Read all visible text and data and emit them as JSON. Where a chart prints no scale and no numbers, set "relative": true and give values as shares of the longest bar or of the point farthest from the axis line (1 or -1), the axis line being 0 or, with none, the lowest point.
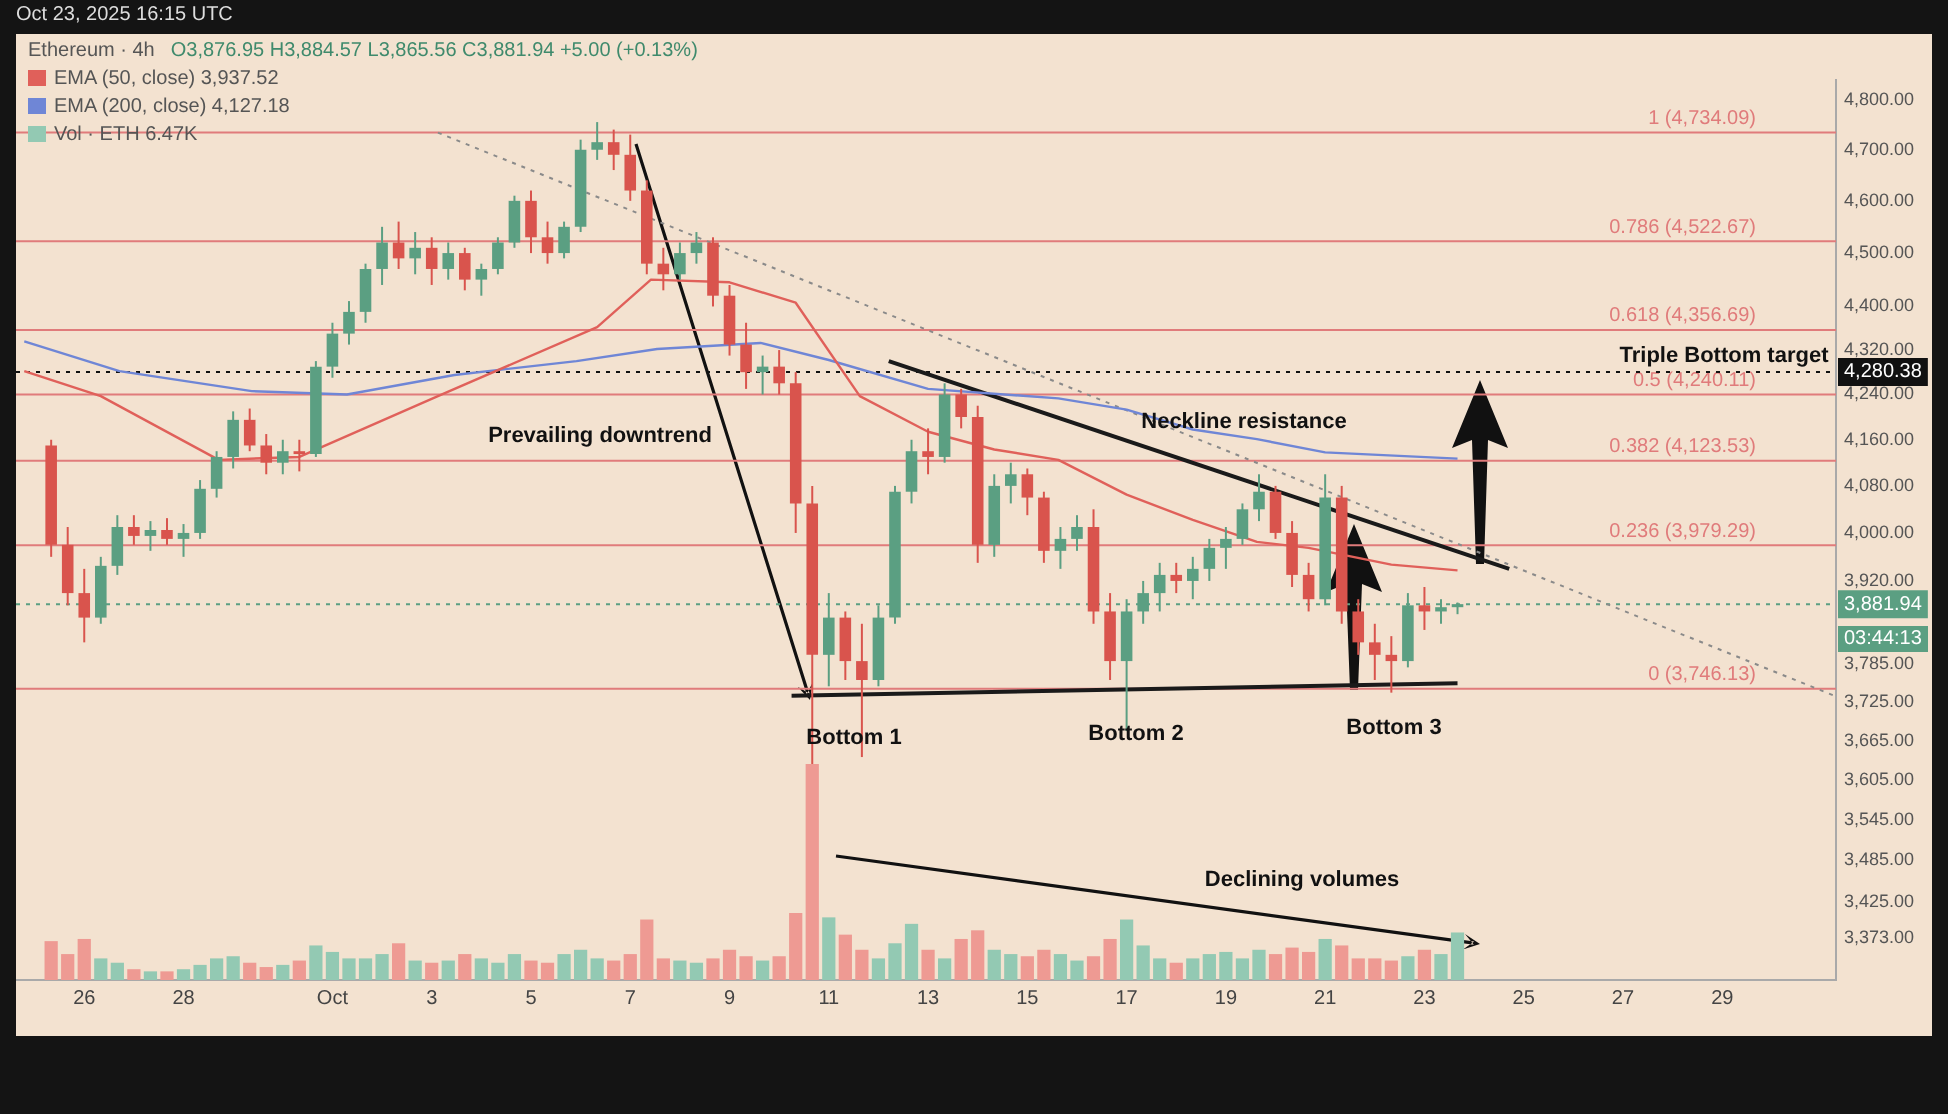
{
  "chart_data": [
    {
      "type": "candlestick",
      "title": "Ethereum · 4h",
      "subtitle": "O3,876.95 H3,884.57 L3,865.56 C3,881.94 +5.00 (+0.13%)",
      "legend": "top left",
      "grid": false,
      "log": true,
      "x": [
        "2025-09-25T08:00",
        "2025-09-25T16:00",
        "2025-09-26T00:00",
        "2025-09-26T08:00",
        "2025-09-26T16:00",
        "2025-09-27T00:00",
        "2025-09-27T08:00",
        "2025-09-27T16:00",
        "2025-09-28T00:00",
        "2025-09-28T08:00",
        "2025-09-28T16:00",
        "2025-09-29T00:00",
        "2025-09-29T08:00",
        "2025-09-29T16:00",
        "2025-09-30T00:00",
        "2025-09-30T08:00",
        "2025-09-30T16:00",
        "2025-10-01T00:00",
        "2025-10-01T08:00",
        "2025-10-01T16:00",
        "2025-10-02T00:00",
        "2025-10-02T08:00",
        "2025-10-02T16:00",
        "2025-10-03T00:00",
        "2025-10-03T08:00",
        "2025-10-03T16:00",
        "2025-10-04T00:00",
        "2025-10-04T08:00",
        "2025-10-04T16:00",
        "2025-10-05T00:00",
        "2025-10-05T08:00",
        "2025-10-05T16:00",
        "2025-10-06T00:00",
        "2025-10-06T08:00",
        "2025-10-06T16:00",
        "2025-10-07T00:00",
        "2025-10-07T08:00",
        "2025-10-07T16:00",
        "2025-10-08T00:00",
        "2025-10-08T08:00",
        "2025-10-08T16:00",
        "2025-10-09T00:00",
        "2025-10-09T08:00",
        "2025-10-09T16:00",
        "2025-10-10T00:00",
        "2025-10-10T08:00",
        "2025-10-10T16:00",
        "2025-10-11T00:00",
        "2025-10-11T08:00",
        "2025-10-11T16:00",
        "2025-10-12T00:00",
        "2025-10-12T08:00",
        "2025-10-12T16:00",
        "2025-10-13T00:00",
        "2025-10-13T08:00",
        "2025-10-13T16:00",
        "2025-10-14T00:00",
        "2025-10-14T08:00",
        "2025-10-14T16:00",
        "2025-10-15T00:00",
        "2025-10-15T08:00",
        "2025-10-15T16:00",
        "2025-10-16T00:00",
        "2025-10-16T08:00",
        "2025-10-16T16:00",
        "2025-10-17T00:00",
        "2025-10-17T08:00",
        "2025-10-17T16:00",
        "2025-10-18T00:00",
        "2025-10-18T08:00",
        "2025-10-18T16:00",
        "2025-10-19T00:00",
        "2025-10-19T08:00",
        "2025-10-19T16:00",
        "2025-10-20T00:00",
        "2025-10-20T08:00",
        "2025-10-20T16:00",
        "2025-10-21T00:00",
        "2025-10-21T08:00",
        "2025-10-21T16:00",
        "2025-10-22T00:00",
        "2025-10-22T08:00",
        "2025-10-22T16:00",
        "2025-10-23T00:00",
        "2025-10-23T08:00",
        "2025-10-23T16:00"
      ],
      "ohlc": [
        [
          4150,
          4160,
          3960,
          3980
        ],
        [
          3980,
          4010,
          3880,
          3900
        ],
        [
          3900,
          3940,
          3820,
          3860
        ],
        [
          3860,
          3960,
          3850,
          3945
        ],
        [
          3945,
          4030,
          3930,
          4010
        ],
        [
          4010,
          4030,
          3980,
          3995
        ],
        [
          3995,
          4020,
          3970,
          4005
        ],
        [
          4005,
          4025,
          3980,
          3990
        ],
        [
          3990,
          4015,
          3960,
          4000
        ],
        [
          4000,
          4090,
          3990,
          4075
        ],
        [
          4075,
          4140,
          4060,
          4130
        ],
        [
          4130,
          4210,
          4110,
          4195
        ],
        [
          4195,
          4215,
          4140,
          4150
        ],
        [
          4150,
          4170,
          4100,
          4120
        ],
        [
          4120,
          4160,
          4100,
          4140
        ],
        [
          4140,
          4160,
          4105,
          4135
        ],
        [
          4135,
          4300,
          4130,
          4290
        ],
        [
          4290,
          4370,
          4270,
          4350
        ],
        [
          4350,
          4410,
          4330,
          4390
        ],
        [
          4390,
          4480,
          4370,
          4470
        ],
        [
          4470,
          4550,
          4440,
          4520
        ],
        [
          4520,
          4560,
          4470,
          4490
        ],
        [
          4490,
          4540,
          4460,
          4510
        ],
        [
          4510,
          4530,
          4440,
          4470
        ],
        [
          4470,
          4520,
          4450,
          4500
        ],
        [
          4500,
          4510,
          4430,
          4450
        ],
        [
          4450,
          4480,
          4420,
          4470
        ],
        [
          4470,
          4530,
          4460,
          4520
        ],
        [
          4520,
          4610,
          4510,
          4600
        ],
        [
          4600,
          4620,
          4500,
          4530
        ],
        [
          4530,
          4560,
          4480,
          4500
        ],
        [
          4500,
          4560,
          4490,
          4550
        ],
        [
          4550,
          4720,
          4540,
          4700
        ],
        [
          4700,
          4755,
          4680,
          4715
        ],
        [
          4715,
          4740,
          4660,
          4690
        ],
        [
          4690,
          4730,
          4600,
          4620
        ],
        [
          4620,
          4640,
          4460,
          4480
        ],
        [
          4480,
          4510,
          4430,
          4460
        ],
        [
          4460,
          4520,
          4450,
          4500
        ],
        [
          4500,
          4540,
          4480,
          4520
        ],
        [
          4520,
          4530,
          4400,
          4420
        ],
        [
          4420,
          4440,
          4310,
          4330
        ],
        [
          4330,
          4370,
          4250,
          4280
        ],
        [
          4280,
          4310,
          4240,
          4290
        ],
        [
          4290,
          4320,
          4240,
          4260
        ],
        [
          4260,
          4280,
          4000,
          4050
        ],
        [
          4050,
          4080,
          3600,
          3800
        ],
        [
          3800,
          3900,
          3750,
          3860
        ],
        [
          3860,
          3870,
          3760,
          3790
        ],
        [
          3790,
          3850,
          3640,
          3760
        ],
        [
          3760,
          3880,
          3750,
          3860
        ],
        [
          3860,
          4080,
          3850,
          4070
        ],
        [
          4070,
          4160,
          4050,
          4140
        ],
        [
          4140,
          4180,
          4100,
          4130
        ],
        [
          4130,
          4260,
          4120,
          4240
        ],
        [
          4240,
          4250,
          4180,
          4200
        ],
        [
          4200,
          4220,
          3950,
          3980
        ],
        [
          3980,
          4100,
          3960,
          4080
        ],
        [
          4080,
          4120,
          4050,
          4100
        ],
        [
          4100,
          4110,
          4030,
          4060
        ],
        [
          4060,
          4070,
          3950,
          3970
        ],
        [
          3970,
          4010,
          3940,
          3990
        ],
        [
          3990,
          4030,
          3970,
          4010
        ],
        [
          4010,
          4040,
          3850,
          3870
        ],
        [
          3870,
          3900,
          3760,
          3790
        ],
        [
          3790,
          3890,
          3680,
          3870
        ],
        [
          3870,
          3920,
          3850,
          3900
        ],
        [
          3900,
          3950,
          3870,
          3930
        ],
        [
          3930,
          3950,
          3900,
          3920
        ],
        [
          3920,
          3960,
          3890,
          3940
        ],
        [
          3940,
          3990,
          3920,
          3975
        ],
        [
          3975,
          4010,
          3940,
          3990
        ],
        [
          3990,
          4050,
          3980,
          4040
        ],
        [
          4040,
          4100,
          4020,
          4070
        ],
        [
          4070,
          4080,
          3990,
          4000
        ],
        [
          4000,
          4020,
          3910,
          3930
        ],
        [
          3930,
          3950,
          3870,
          3890
        ],
        [
          3890,
          4100,
          3880,
          4060
        ],
        [
          4060,
          4080,
          3850,
          3870
        ],
        [
          3870,
          3890,
          3800,
          3820
        ],
        [
          3820,
          3850,
          3760,
          3800
        ],
        [
          3800,
          3830,
          3740,
          3790
        ],
        [
          3790,
          3900,
          3780,
          3880
        ],
        [
          3880,
          3910,
          3840,
          3870
        ],
        [
          3870,
          3890,
          3850,
          3876.95
        ],
        [
          3876.95,
          3884.57,
          3865.56,
          3881.94
        ]
      ],
      "colors": [
        "#d9544d",
        "#d9544d",
        "#d9544d",
        "#5b9f82",
        "#5b9f82",
        "#d9544d",
        "#5b9f82",
        "#d9544d",
        "#5b9f82",
        "#5b9f82",
        "#5b9f82",
        "#5b9f82",
        "#d9544d",
        "#d9544d",
        "#5b9f82",
        "#d9544d",
        "#5b9f82",
        "#5b9f82",
        "#5b9f82",
        "#5b9f82",
        "#5b9f82",
        "#d9544d",
        "#5b9f82",
        "#d9544d",
        "#5b9f82",
        "#d9544d",
        "#5b9f82",
        "#5b9f82",
        "#5b9f82",
        "#d9544d",
        "#d9544d",
        "#5b9f82",
        "#5b9f82",
        "#5b9f82",
        "#d9544d",
        "#d9544d",
        "#d9544d",
        "#d9544d",
        "#5b9f82",
        "#5b9f82",
        "#d9544d",
        "#d9544d",
        "#d9544d",
        "#5b9f82",
        "#d9544d",
        "#d9544d",
        "#d9544d",
        "#5b9f82",
        "#d9544d",
        "#d9544d",
        "#5b9f82",
        "#5b9f82",
        "#5b9f82",
        "#d9544d",
        "#5b9f82",
        "#d9544d",
        "#d9544d",
        "#5b9f82",
        "#5b9f82",
        "#d9544d",
        "#d9544d",
        "#5b9f82",
        "#5b9f82",
        "#d9544d",
        "#d9544d",
        "#5b9f82",
        "#5b9f82",
        "#5b9f82",
        "#d9544d",
        "#5b9f82",
        "#5b9f82",
        "#5b9f82",
        "#5b9f82",
        "#5b9f82",
        "#d9544d",
        "#d9544d",
        "#d9544d",
        "#5b9f82",
        "#d9544d",
        "#d9544d",
        "#d9544d",
        "#d9544d",
        "#5b9f82",
        "#d9544d",
        "#5b9f82",
        "#5b9f82"
      ],
      "series": [
        {
          "name": "EMA (50, close) 3,937.52",
          "type": "line",
          "color": "#e0605a",
          "x": [
            "2025-09-24T19:00",
            "2025-09-26T08:00",
            "2025-09-28T17:00",
            "2025-09-30T08:00",
            "2025-10-03T03:00",
            "2025-10-06T08:00",
            "2025-10-07T10:00",
            "2025-10-09T00:00",
            "2025-10-10T08:00",
            "2025-10-11T15:00",
            "2025-10-13T00:00",
            "2025-10-14T08:00",
            "2025-10-15T15:00",
            "2025-10-17T00:00",
            "2025-10-18T08:00",
            "2025-10-19T15:00",
            "2025-10-20T16:00",
            "2025-10-22T08:00",
            "2025-10-23T16:00"
          ],
          "values": [
            4282,
            4237,
            4125,
            4130,
            4237,
            4362,
            4450,
            4445,
            4407,
            4237,
            4174,
            4143,
            4125,
            4065,
            4022,
            3985,
            3975,
            3947,
            3937.52
          ]
        },
        {
          "name": "EMA (200, close) 4,127.18",
          "type": "line",
          "color": "#6f86d6",
          "x": [
            "2025-09-24T19:00",
            "2025-09-26T17:00",
            "2025-09-29T09:00",
            "2025-10-01T07:00",
            "2025-10-03T11:00",
            "2025-10-05T22:00",
            "2025-10-07T13:00",
            "2025-10-09T15:00",
            "2025-10-11T00:00",
            "2025-10-13T00:00",
            "2025-10-15T15:00",
            "2025-10-17T00:00",
            "2025-10-18T08:00",
            "2025-10-19T15:00",
            "2025-10-21T00:00",
            "2025-10-23T16:00"
          ],
          "values": [
            4336,
            4282,
            4246,
            4240,
            4275,
            4300,
            4322,
            4333,
            4302,
            4250,
            4233,
            4213,
            4178,
            4161,
            4138,
            4127.18
          ]
        },
        {
          "type": "line",
          "color": "#1a1a1a",
          "x": [
            "2025-10-12T05:00",
            "2025-10-24T17:00"
          ],
          "values": [
            4300,
            3940
          ]
        },
        {
          "type": "line",
          "color": "#1a1a1a",
          "x": [
            "2025-10-10T06:00",
            "2025-10-23T16:00"
          ],
          "values": [
            3735,
            3755
          ]
        },
        {
          "type": "line",
          "color": "#8a8a8a",
          "line_style": "dotted",
          "x": [
            "2025-10-03T03:00",
            "2025-10-31T07:00"
          ],
          "values": [
            4734,
            3734
          ]
        }
      ],
      "xlim": [
        "2025-09-24T15:00",
        "2025-10-31T07:00"
      ],
      "xticks": [
        {
          "value": "2025-09-26",
          "label": "26"
        },
        {
          "value": "2025-09-28",
          "label": "28"
        },
        {
          "value": "2025-10-01",
          "label": "Oct"
        },
        {
          "value": "2025-10-03",
          "label": "3"
        },
        {
          "value": "2025-10-05",
          "label": "5"
        },
        {
          "value": "2025-10-07",
          "label": "7"
        },
        {
          "value": "2025-10-09",
          "label": "9"
        },
        {
          "value": "2025-10-11",
          "label": "11"
        },
        {
          "value": "2025-10-13",
          "label": "13"
        },
        {
          "value": "2025-10-15",
          "label": "15"
        },
        {
          "value": "2025-10-17",
          "label": "17"
        },
        {
          "value": "2025-10-19",
          "label": "19"
        },
        {
          "value": "2025-10-21",
          "label": "21"
        },
        {
          "value": "2025-10-23",
          "label": "23"
        },
        {
          "value": "2025-10-25",
          "label": "25"
        },
        {
          "value": "2025-10-27",
          "label": "27"
        },
        {
          "value": "2025-10-29",
          "label": "29"
        }
      ],
      "ylim": [
        3314,
        4840
      ],
      "yticks": [
        {
          "value": 4800,
          "label": "4,800.00"
        },
        {
          "value": 4700,
          "label": "4,700.00"
        },
        {
          "value": 4600,
          "label": "4,600.00"
        },
        {
          "value": 4500,
          "label": "4,500.00"
        },
        {
          "value": 4400,
          "label": "4,400.00"
        },
        {
          "value": 4320,
          "label": "4,320.00"
        },
        {
          "value": 4240,
          "label": "4,240.00"
        },
        {
          "value": 4160,
          "label": "4,160.00"
        },
        {
          "value": 4080,
          "label": "4,080.00"
        },
        {
          "value": 4000,
          "label": "4,000.00"
        },
        {
          "value": 3920,
          "label": "3,920.00"
        },
        {
          "value": 3785,
          "label": "3,785.00"
        },
        {
          "value": 3725,
          "label": "3,725.00"
        },
        {
          "value": 3665,
          "label": "3,665.00"
        },
        {
          "value": 3605,
          "label": "3,605.00"
        },
        {
          "value": 3545,
          "label": "3,545.00"
        },
        {
          "value": 3485,
          "label": "3,485.00"
        },
        {
          "value": 3425,
          "label": "3,425.00"
        },
        {
          "value": 3373,
          "label": "3,373.00"
        }
      ],
      "ref_lines": [
        {
          "axis": "y",
          "value": 4734.09,
          "label": "1 (4,734.09)",
          "color": "#e07b7b"
        },
        {
          "axis": "y",
          "value": 4522.67,
          "label": "0.786 (4,522.67)",
          "color": "#e07b7b"
        },
        {
          "axis": "y",
          "value": 4356.69,
          "label": "0.618 (4,356.69)",
          "color": "#e07b7b"
        },
        {
          "axis": "y",
          "value": 4240.11,
          "label": "0.5 (4,240.11)",
          "color": "#e07b7b"
        },
        {
          "axis": "y",
          "value": 4123.53,
          "label": "0.382 (4,123.53)",
          "color": "#e07b7b"
        },
        {
          "axis": "y",
          "value": 3979.29,
          "label": "0.236 (3,979.29)",
          "color": "#e07b7b"
        },
        {
          "axis": "y",
          "value": 3746.13,
          "label": "0 (3,746.13)",
          "color": "#e07b7b"
        },
        {
          "axis": "y",
          "value": 4280.38,
          "label": "4,280.38",
          "color": "#111111",
          "line_style": "dotted"
        },
        {
          "axis": "y",
          "value": 3881.94,
          "label": "3,881.94",
          "color": "#5b9f82",
          "line_style": "dotted"
        }
      ],
      "annotations": [
        "Oct 23, 2025 16:15 UTC",
        "03:44:13",
        "Prevailing downtrend",
        "Neckline resistance",
        "Triple Bottom target",
        "Bottom 1",
        "Bottom 2",
        "Bottom 3",
        "Declining volumes"
      ]
    },
    {
      "type": "bar",
      "relative": true,
      "legend": "top left",
      "xlim": [
        "2025-09-24T15:00",
        "2025-10-31T07:00"
      ],
      "x": [
        "2025-09-25T08:00",
        "2025-09-25T16:00",
        "2025-09-26T00:00",
        "2025-09-26T08:00",
        "2025-09-26T16:00",
        "2025-09-27T00:00",
        "2025-09-27T08:00",
        "2025-09-27T16:00",
        "2025-09-28T00:00",
        "2025-09-28T08:00",
        "2025-09-28T16:00",
        "2025-09-29T00:00",
        "2025-09-29T08:00",
        "2025-09-29T16:00",
        "2025-09-30T00:00",
        "2025-09-30T08:00",
        "2025-09-30T16:00",
        "2025-10-01T00:00",
        "2025-10-01T08:00",
        "2025-10-01T16:00",
        "2025-10-02T00:00",
        "2025-10-02T08:00",
        "2025-10-02T16:00",
        "2025-10-03T00:00",
        "2025-10-03T08:00",
        "2025-10-03T16:00",
        "2025-10-04T00:00",
        "2025-10-04T08:00",
        "2025-10-04T16:00",
        "2025-10-05T00:00",
        "2025-10-05T08:00",
        "2025-10-05T16:00",
        "2025-10-06T00:00",
        "2025-10-06T08:00",
        "2025-10-06T16:00",
        "2025-10-07T00:00",
        "2025-10-07T08:00",
        "2025-10-07T16:00",
        "2025-10-08T00:00",
        "2025-10-08T08:00",
        "2025-10-08T16:00",
        "2025-10-09T00:00",
        "2025-10-09T08:00",
        "2025-10-09T16:00",
        "2025-10-10T00:00",
        "2025-10-10T08:00",
        "2025-10-10T16:00",
        "2025-10-11T00:00",
        "2025-10-11T08:00",
        "2025-10-11T16:00",
        "2025-10-12T00:00",
        "2025-10-12T08:00",
        "2025-10-12T16:00",
        "2025-10-13T00:00",
        "2025-10-13T08:00",
        "2025-10-13T16:00",
        "2025-10-14T00:00",
        "2025-10-14T08:00",
        "2025-10-14T16:00",
        "2025-10-15T00:00",
        "2025-10-15T08:00",
        "2025-10-15T16:00",
        "2025-10-16T00:00",
        "2025-10-16T08:00",
        "2025-10-16T16:00",
        "2025-10-17T00:00",
        "2025-10-17T08:00",
        "2025-10-17T16:00",
        "2025-10-18T00:00",
        "2025-10-18T08:00",
        "2025-10-18T16:00",
        "2025-10-19T00:00",
        "2025-10-19T08:00",
        "2025-10-19T16:00",
        "2025-10-20T00:00",
        "2025-10-20T08:00",
        "2025-10-20T16:00",
        "2025-10-21T00:00",
        "2025-10-21T08:00",
        "2025-10-21T16:00",
        "2025-10-22T00:00",
        "2025-10-22T08:00",
        "2025-10-22T16:00",
        "2025-10-23T00:00",
        "2025-10-23T08:00",
        "2025-10-23T16:00"
      ],
      "series": [
        {
          "name": "Vol · ETH 6.47K",
          "color": "#93c9b3",
          "colors": [
            "#ee9a93",
            "#ee9a93",
            "#ee9a93",
            "#93c9b3",
            "#93c9b3",
            "#ee9a93",
            "#93c9b3",
            "#ee9a93",
            "#93c9b3",
            "#93c9b3",
            "#93c9b3",
            "#93c9b3",
            "#ee9a93",
            "#ee9a93",
            "#93c9b3",
            "#ee9a93",
            "#93c9b3",
            "#93c9b3",
            "#93c9b3",
            "#93c9b3",
            "#93c9b3",
            "#ee9a93",
            "#93c9b3",
            "#ee9a93",
            "#93c9b3",
            "#ee9a93",
            "#93c9b3",
            "#93c9b3",
            "#93c9b3",
            "#ee9a93",
            "#ee9a93",
            "#93c9b3",
            "#93c9b3",
            "#93c9b3",
            "#ee9a93",
            "#ee9a93",
            "#ee9a93",
            "#ee9a93",
            "#93c9b3",
            "#93c9b3",
            "#ee9a93",
            "#ee9a93",
            "#ee9a93",
            "#93c9b3",
            "#ee9a93",
            "#ee9a93",
            "#ee9a93",
            "#93c9b3",
            "#ee9a93",
            "#ee9a93",
            "#93c9b3",
            "#93c9b3",
            "#93c9b3",
            "#ee9a93",
            "#93c9b3",
            "#ee9a93",
            "#ee9a93",
            "#93c9b3",
            "#93c9b3",
            "#ee9a93",
            "#ee9a93",
            "#93c9b3",
            "#93c9b3",
            "#ee9a93",
            "#ee9a93",
            "#93c9b3",
            "#93c9b3",
            "#93c9b3",
            "#ee9a93",
            "#93c9b3",
            "#93c9b3",
            "#93c9b3",
            "#93c9b3",
            "#93c9b3",
            "#ee9a93",
            "#ee9a93",
            "#ee9a93",
            "#93c9b3",
            "#ee9a93",
            "#ee9a93",
            "#ee9a93",
            "#ee9a93",
            "#93c9b3",
            "#ee9a93",
            "#93c9b3",
            "#93c9b3"
          ],
          "values": [
            0.18,
            0.12,
            0.19,
            0.1,
            0.08,
            0.05,
            0.04,
            0.04,
            0.05,
            0.07,
            0.1,
            0.11,
            0.08,
            0.06,
            0.07,
            0.09,
            0.16,
            0.13,
            0.1,
            0.1,
            0.12,
            0.17,
            0.09,
            0.08,
            0.09,
            0.12,
            0.1,
            0.08,
            0.12,
            0.09,
            0.08,
            0.12,
            0.14,
            0.1,
            0.09,
            0.12,
            0.28,
            0.1,
            0.09,
            0.08,
            0.1,
            0.14,
            0.11,
            0.09,
            0.11,
            0.31,
            1,
            0.29,
            0.21,
            0.14,
            0.1,
            0.17,
            0.26,
            0.14,
            0.1,
            0.19,
            0.23,
            0.14,
            0.12,
            0.11,
            0.14,
            0.12,
            0.09,
            0.11,
            0.19,
            0.28,
            0.16,
            0.1,
            0.08,
            0.1,
            0.12,
            0.13,
            0.1,
            0.14,
            0.12,
            0.15,
            0.13,
            0.19,
            0.16,
            0.1,
            0.1,
            0.09,
            0.11,
            0.14,
            0.12,
            0.22
          ]
        }
      ]
    }
  ]
}
